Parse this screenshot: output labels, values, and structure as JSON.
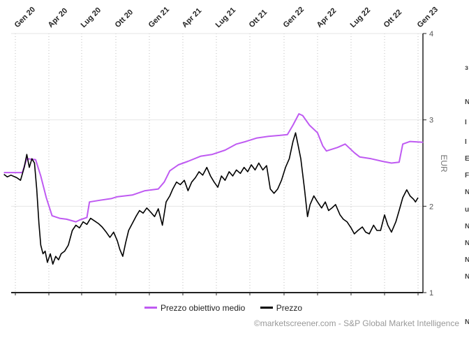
{
  "chart_data": {
    "type": "line",
    "xlabel": "",
    "ylabel": "EUR",
    "ylim": [
      1,
      4
    ],
    "x_ticks": [
      "Gen 20",
      "Apr 20",
      "Lug 20",
      "Ott 20",
      "Gen 21",
      "Apr 21",
      "Lug 21",
      "Ott 21",
      "Gen 22",
      "Apr 22",
      "Lug 22",
      "Ott 22",
      "Gen 23"
    ],
    "y_ticks": [
      1,
      2,
      3,
      4
    ],
    "grid": true,
    "legend": "bottom",
    "series": [
      {
        "name": "Prezzo obiettivo medio",
        "color": "#bf5af2",
        "points": [
          [
            "2019-12-01",
            2.39
          ],
          [
            "2020-01-20",
            2.39
          ],
          [
            "2020-02-01",
            2.55
          ],
          [
            "2020-02-25",
            2.54
          ],
          [
            "2020-03-10",
            2.35
          ],
          [
            "2020-03-25",
            2.1
          ],
          [
            "2020-04-10",
            1.89
          ],
          [
            "2020-05-01",
            1.86
          ],
          [
            "2020-05-20",
            1.85
          ],
          [
            "2020-06-15",
            1.82
          ],
          [
            "2020-06-25",
            1.84
          ],
          [
            "2020-07-15",
            1.87
          ],
          [
            "2020-07-22",
            2.05
          ],
          [
            "2020-08-20",
            2.07
          ],
          [
            "2020-09-20",
            2.09
          ],
          [
            "2020-10-05",
            2.11
          ],
          [
            "2020-11-15",
            2.13
          ],
          [
            "2020-12-20",
            2.18
          ],
          [
            "2021-01-25",
            2.2
          ],
          [
            "2021-02-10",
            2.28
          ],
          [
            "2021-02-25",
            2.41
          ],
          [
            "2021-03-20",
            2.48
          ],
          [
            "2021-04-15",
            2.52
          ],
          [
            "2021-05-20",
            2.58
          ],
          [
            "2021-06-20",
            2.6
          ],
          [
            "2021-07-25",
            2.65
          ],
          [
            "2021-08-25",
            2.72
          ],
          [
            "2021-09-20",
            2.75
          ],
          [
            "2021-10-20",
            2.79
          ],
          [
            "2021-11-20",
            2.81
          ],
          [
            "2021-12-20",
            2.82
          ],
          [
            "2022-01-10",
            2.83
          ],
          [
            "2022-01-25",
            2.94
          ],
          [
            "2022-02-10",
            3.07
          ],
          [
            "2022-02-20",
            3.05
          ],
          [
            "2022-03-10",
            2.94
          ],
          [
            "2022-04-01",
            2.85
          ],
          [
            "2022-04-15",
            2.7
          ],
          [
            "2022-04-25",
            2.64
          ],
          [
            "2022-05-25",
            2.68
          ],
          [
            "2022-06-15",
            2.72
          ],
          [
            "2022-07-10",
            2.62
          ],
          [
            "2022-07-25",
            2.57
          ],
          [
            "2022-08-25",
            2.55
          ],
          [
            "2022-09-25",
            2.52
          ],
          [
            "2022-10-20",
            2.5
          ],
          [
            "2022-11-10",
            2.51
          ],
          [
            "2022-11-20",
            2.72
          ],
          [
            "2022-12-10",
            2.75
          ],
          [
            "2023-01-15",
            2.74
          ]
        ]
      },
      {
        "name": "Prezzo",
        "color": "#000000",
        "points": [
          [
            "2019-12-01",
            2.37
          ],
          [
            "2019-12-10",
            2.34
          ],
          [
            "2019-12-20",
            2.36
          ],
          [
            "2020-01-05",
            2.33
          ],
          [
            "2020-01-15",
            2.3
          ],
          [
            "2020-01-25",
            2.45
          ],
          [
            "2020-02-01",
            2.6
          ],
          [
            "2020-02-08",
            2.45
          ],
          [
            "2020-02-15",
            2.55
          ],
          [
            "2020-02-22",
            2.5
          ],
          [
            "2020-02-28",
            2.2
          ],
          [
            "2020-03-05",
            1.8
          ],
          [
            "2020-03-10",
            1.55
          ],
          [
            "2020-03-16",
            1.45
          ],
          [
            "2020-03-22",
            1.48
          ],
          [
            "2020-03-28",
            1.35
          ],
          [
            "2020-04-05",
            1.45
          ],
          [
            "2020-04-12",
            1.33
          ],
          [
            "2020-04-20",
            1.42
          ],
          [
            "2020-04-28",
            1.38
          ],
          [
            "2020-05-05",
            1.45
          ],
          [
            "2020-05-15",
            1.48
          ],
          [
            "2020-05-25",
            1.55
          ],
          [
            "2020-06-05",
            1.72
          ],
          [
            "2020-06-15",
            1.78
          ],
          [
            "2020-06-25",
            1.75
          ],
          [
            "2020-07-05",
            1.82
          ],
          [
            "2020-07-15",
            1.79
          ],
          [
            "2020-07-25",
            1.86
          ],
          [
            "2020-08-05",
            1.83
          ],
          [
            "2020-08-15",
            1.8
          ],
          [
            "2020-08-25",
            1.76
          ],
          [
            "2020-09-05",
            1.7
          ],
          [
            "2020-09-15",
            1.64
          ],
          [
            "2020-09-25",
            1.7
          ],
          [
            "2020-10-05",
            1.6
          ],
          [
            "2020-10-12",
            1.5
          ],
          [
            "2020-10-20",
            1.42
          ],
          [
            "2020-10-28",
            1.58
          ],
          [
            "2020-11-05",
            1.72
          ],
          [
            "2020-11-15",
            1.8
          ],
          [
            "2020-11-25",
            1.88
          ],
          [
            "2020-12-05",
            1.95
          ],
          [
            "2020-12-15",
            1.92
          ],
          [
            "2020-12-25",
            1.98
          ],
          [
            "2021-01-05",
            1.93
          ],
          [
            "2021-01-15",
            1.88
          ],
          [
            "2021-01-25",
            1.97
          ],
          [
            "2021-02-05",
            1.78
          ],
          [
            "2021-02-15",
            2.05
          ],
          [
            "2021-02-25",
            2.12
          ],
          [
            "2021-03-05",
            2.2
          ],
          [
            "2021-03-15",
            2.28
          ],
          [
            "2021-03-25",
            2.25
          ],
          [
            "2021-04-05",
            2.3
          ],
          [
            "2021-04-15",
            2.18
          ],
          [
            "2021-04-25",
            2.28
          ],
          [
            "2021-05-05",
            2.33
          ],
          [
            "2021-05-15",
            2.4
          ],
          [
            "2021-05-25",
            2.36
          ],
          [
            "2021-06-05",
            2.45
          ],
          [
            "2021-06-15",
            2.35
          ],
          [
            "2021-06-25",
            2.28
          ],
          [
            "2021-07-05",
            2.22
          ],
          [
            "2021-07-15",
            2.35
          ],
          [
            "2021-07-25",
            2.3
          ],
          [
            "2021-08-05",
            2.4
          ],
          [
            "2021-08-15",
            2.35
          ],
          [
            "2021-08-25",
            2.42
          ],
          [
            "2021-09-05",
            2.38
          ],
          [
            "2021-09-15",
            2.45
          ],
          [
            "2021-09-25",
            2.4
          ],
          [
            "2021-10-05",
            2.48
          ],
          [
            "2021-10-15",
            2.42
          ],
          [
            "2021-10-25",
            2.5
          ],
          [
            "2021-11-05",
            2.42
          ],
          [
            "2021-11-15",
            2.47
          ],
          [
            "2021-11-25",
            2.2
          ],
          [
            "2021-12-05",
            2.15
          ],
          [
            "2021-12-15",
            2.2
          ],
          [
            "2021-12-25",
            2.3
          ],
          [
            "2022-01-05",
            2.45
          ],
          [
            "2022-01-15",
            2.55
          ],
          [
            "2022-01-25",
            2.75
          ],
          [
            "2022-02-01",
            2.85
          ],
          [
            "2022-02-08",
            2.7
          ],
          [
            "2022-02-15",
            2.55
          ],
          [
            "2022-02-25",
            2.2
          ],
          [
            "2022-03-05",
            1.88
          ],
          [
            "2022-03-12",
            2.02
          ],
          [
            "2022-03-22",
            2.12
          ],
          [
            "2022-04-01",
            2.05
          ],
          [
            "2022-04-12",
            1.98
          ],
          [
            "2022-04-22",
            2.05
          ],
          [
            "2022-05-01",
            1.95
          ],
          [
            "2022-05-10",
            1.98
          ],
          [
            "2022-05-20",
            2.02
          ],
          [
            "2022-06-01",
            1.9
          ],
          [
            "2022-06-10",
            1.85
          ],
          [
            "2022-06-20",
            1.82
          ],
          [
            "2022-07-01",
            1.75
          ],
          [
            "2022-07-10",
            1.68
          ],
          [
            "2022-07-20",
            1.72
          ],
          [
            "2022-08-01",
            1.76
          ],
          [
            "2022-08-10",
            1.7
          ],
          [
            "2022-08-20",
            1.68
          ],
          [
            "2022-09-01",
            1.78
          ],
          [
            "2022-09-10",
            1.72
          ],
          [
            "2022-09-20",
            1.72
          ],
          [
            "2022-10-01",
            1.9
          ],
          [
            "2022-10-10",
            1.78
          ],
          [
            "2022-10-20",
            1.7
          ],
          [
            "2022-11-01",
            1.82
          ],
          [
            "2022-11-10",
            1.95
          ],
          [
            "2022-11-20",
            2.1
          ],
          [
            "2022-12-01",
            2.19
          ],
          [
            "2022-12-10",
            2.12
          ],
          [
            "2022-12-20",
            2.08
          ],
          [
            "2022-12-25",
            2.05
          ],
          [
            "2023-01-01",
            2.1
          ]
        ]
      }
    ]
  },
  "legend": {
    "target_label": "Prezzo obiettivo medio",
    "price_label": "Prezzo"
  },
  "credit": "©marketscreener.com - S&P Global Market Intelligence",
  "cut_edge_glyphs": [
    "з",
    "I",
    "E",
    "F",
    "N",
    "u",
    "N",
    "N",
    "N",
    "N",
    "N",
    "N",
    "I"
  ]
}
